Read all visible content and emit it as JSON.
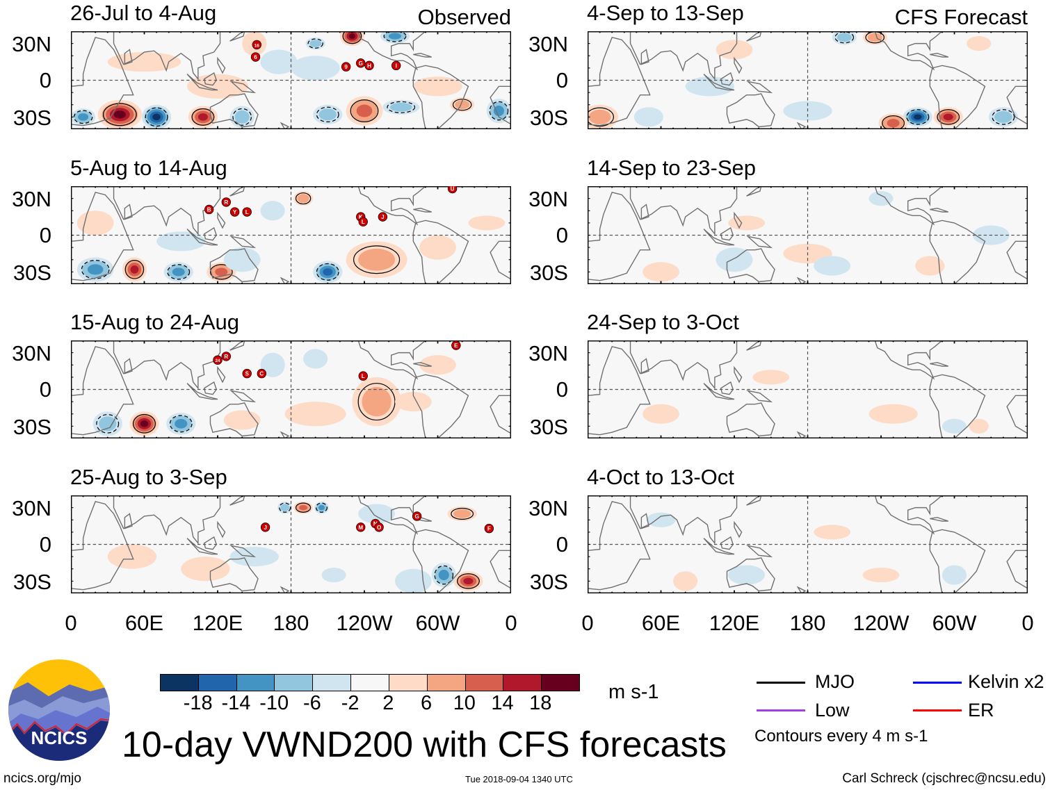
{
  "figure_title": "10-day VWND200 with CFS forecasts",
  "units": "m s-1",
  "footer": {
    "site": "ncics.org/mjo",
    "timestamp": "Tue 2018-09-04 1340 UTC",
    "author": "Carl Schreck (cjschrec@ncsu.edu)"
  },
  "logo_text": "NCICS",
  "columns": [
    {
      "tag": "Observed"
    },
    {
      "tag": "CFS Forecast"
    }
  ],
  "y_ticks": [
    "30N",
    "0",
    "30S"
  ],
  "x_ticks": [
    "0",
    "60E",
    "120E",
    "180",
    "120W",
    "60W",
    "0"
  ],
  "colorbar": {
    "labels": [
      "-18",
      "-14",
      "-10",
      "-6",
      "-2",
      "2",
      "6",
      "10",
      "14",
      "18"
    ],
    "colors": [
      "#0b3463",
      "#2166ac",
      "#4393c3",
      "#92c5de",
      "#d1e5f0",
      "#f7f7f7",
      "#fddbc7",
      "#f4a582",
      "#d6604d",
      "#b2182b",
      "#67001f"
    ]
  },
  "legend": {
    "items": [
      {
        "label": "MJO",
        "color": "#000000"
      },
      {
        "label": "Kelvin x2",
        "color": "#0000ff"
      },
      {
        "label": "Low",
        "color": "#a040e0"
      },
      {
        "label": "ER",
        "color": "#ff0000"
      }
    ],
    "note": "Contours every 4 m s-1"
  },
  "panels": [
    {
      "title": "26-Jul to 4-Aug",
      "storms": [
        {
          "label": "16",
          "lon": 152,
          "lat": 29
        },
        {
          "label": "6",
          "lon": 151,
          "lat": 19
        },
        {
          "label": "9",
          "lon": 225,
          "lat": 11
        },
        {
          "label": "G",
          "lon": 237,
          "lat": 14
        },
        {
          "label": "H",
          "lon": 244,
          "lat": 12
        },
        {
          "label": "I",
          "lon": 266,
          "lat": 12
        }
      ]
    },
    {
      "title": "5-Aug to 14-Aug",
      "storms": [
        {
          "label": "B",
          "lon": 113,
          "lat": 21
        },
        {
          "label": "R",
          "lon": 127,
          "lat": 27
        },
        {
          "label": "Y",
          "lon": 134,
          "lat": 19
        },
        {
          "label": "L",
          "lon": 144,
          "lat": 19
        },
        {
          "label": "K",
          "lon": 237,
          "lat": 15
        },
        {
          "label": "L",
          "lon": 239,
          "lat": 11
        },
        {
          "label": "J",
          "lon": 255,
          "lat": 15
        },
        {
          "label": "U",
          "lon": 312,
          "lat": 38
        }
      ]
    },
    {
      "title": "15-Aug to 24-Aug",
      "storms": [
        {
          "label": "24",
          "lon": 120,
          "lat": 24
        },
        {
          "label": "R",
          "lon": 127,
          "lat": 27
        },
        {
          "label": "S",
          "lon": 144,
          "lat": 13
        },
        {
          "label": "C",
          "lon": 156,
          "lat": 13
        },
        {
          "label": "L",
          "lon": 239,
          "lat": 11
        },
        {
          "label": "E",
          "lon": 315,
          "lat": 36
        }
      ]
    },
    {
      "title": "25-Aug to 3-Sep",
      "storms": [
        {
          "label": "J",
          "lon": 159,
          "lat": 14
        },
        {
          "label": "M",
          "lon": 237,
          "lat": 14
        },
        {
          "label": "N",
          "lon": 249,
          "lat": 17
        },
        {
          "label": "O",
          "lon": 252,
          "lat": 14
        },
        {
          "label": "G",
          "lon": 283,
          "lat": 23
        },
        {
          "label": "F",
          "lon": 342,
          "lat": 13
        }
      ]
    },
    {
      "title": "4-Sep to 13-Sep",
      "storms": []
    },
    {
      "title": "14-Sep to 23-Sep",
      "storms": []
    },
    {
      "title": "24-Sep to 3-Oct",
      "storms": []
    },
    {
      "title": "4-Oct to 13-Oct",
      "storms": []
    }
  ]
}
